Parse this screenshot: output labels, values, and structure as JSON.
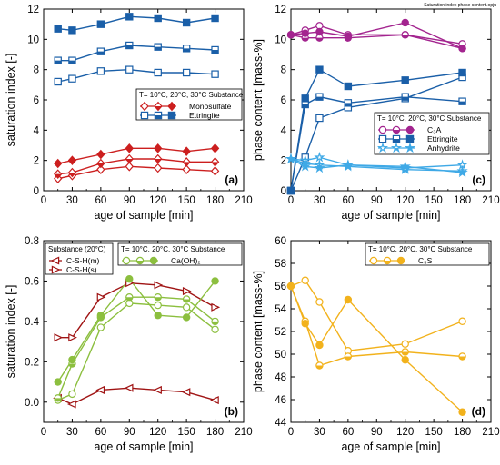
{
  "figure": {
    "header_note": "Saturation index phase content.opju",
    "xlabel": "age of sample [min]",
    "x_ticks": [
      0,
      30,
      60,
      90,
      120,
      150,
      180,
      210
    ]
  },
  "chart_data": [
    {
      "id": "a",
      "panel_label": "(a)",
      "type": "line",
      "ylabel": "saturation index [-]",
      "xlabel": "age of sample [min]",
      "xlim": [
        0,
        210
      ],
      "ylim": [
        0,
        12
      ],
      "y_ticks": [
        0,
        2,
        4,
        6,
        8,
        10,
        12
      ],
      "y_decimals": 0,
      "legend": {
        "position": "center-right",
        "header": "T= 10°C, 20°C, 30°C Substance",
        "entries": [
          {
            "label": "Monosulfate",
            "color": "#cc1f1f",
            "marker": "diamond"
          },
          {
            "label": "Ettringite",
            "color": "#1a5fa8",
            "marker": "square"
          }
        ]
      },
      "series": [
        {
          "name": "Monosulfate",
          "temperature": "10°C",
          "color": "#cc1f1f",
          "marker": "diamond",
          "fill": "none",
          "x": [
            15,
            30,
            60,
            90,
            120,
            150,
            180
          ],
          "y": [
            0.8,
            1.0,
            1.4,
            1.6,
            1.5,
            1.4,
            1.3
          ]
        },
        {
          "name": "Monosulfate",
          "temperature": "20°C",
          "color": "#cc1f1f",
          "marker": "diamond",
          "fill": "half",
          "x": [
            15,
            30,
            60,
            90,
            120,
            150,
            180
          ],
          "y": [
            1.1,
            1.2,
            1.8,
            2.1,
            2.1,
            1.9,
            1.9
          ]
        },
        {
          "name": "Monosulfate",
          "temperature": "30°C",
          "color": "#cc1f1f",
          "marker": "diamond",
          "fill": "full",
          "x": [
            15,
            30,
            60,
            90,
            120,
            150,
            180
          ],
          "y": [
            1.8,
            2.0,
            2.4,
            2.8,
            2.8,
            2.6,
            2.8
          ]
        },
        {
          "name": "Ettringite",
          "temperature": "10°C",
          "color": "#1a5fa8",
          "marker": "square",
          "fill": "none",
          "x": [
            15,
            30,
            60,
            90,
            120,
            150,
            180
          ],
          "y": [
            7.2,
            7.4,
            7.9,
            8.0,
            7.8,
            7.8,
            7.7
          ]
        },
        {
          "name": "Ettringite",
          "temperature": "20°C",
          "color": "#1a5fa8",
          "marker": "square",
          "fill": "half",
          "x": [
            15,
            30,
            60,
            90,
            120,
            150,
            180
          ],
          "y": [
            8.6,
            8.6,
            9.2,
            9.6,
            9.5,
            9.4,
            9.3
          ]
        },
        {
          "name": "Ettringite",
          "temperature": "30°C",
          "color": "#1a5fa8",
          "marker": "square",
          "fill": "full",
          "x": [
            15,
            30,
            60,
            90,
            120,
            150,
            180
          ],
          "y": [
            10.7,
            10.6,
            11.0,
            11.5,
            11.4,
            11.1,
            11.4
          ]
        }
      ]
    },
    {
      "id": "c",
      "panel_label": "(c)",
      "type": "line",
      "ylabel": "phase content [mass-%]",
      "xlabel": "age of sample [min]",
      "xlim": [
        0,
        210
      ],
      "ylim": [
        0,
        12
      ],
      "y_ticks": [
        0,
        2,
        4,
        6,
        8,
        10,
        12
      ],
      "y_decimals": 0,
      "legend": {
        "position": "center-right",
        "header": "T= 10°C, 20°C, 30°C Substance",
        "entries": [
          {
            "label": "C₃A",
            "color": "#a3248f",
            "marker": "circle"
          },
          {
            "label": "Ettringite",
            "color": "#1a5fa8",
            "marker": "square"
          },
          {
            "label": "Anhydrite",
            "color": "#3fa9e6",
            "marker": "star"
          }
        ]
      },
      "series": [
        {
          "name": "C₃A",
          "temperature": "10°C",
          "color": "#a3248f",
          "marker": "circle",
          "fill": "none",
          "x": [
            0,
            15,
            30,
            60,
            120,
            180
          ],
          "y": [
            10.3,
            10.6,
            10.9,
            10.3,
            10.3,
            9.7
          ]
        },
        {
          "name": "C₃A",
          "temperature": "20°C",
          "color": "#a3248f",
          "marker": "circle",
          "fill": "half",
          "x": [
            0,
            15,
            30,
            60,
            120,
            180
          ],
          "y": [
            10.3,
            10.1,
            10.1,
            10.1,
            10.3,
            9.4
          ]
        },
        {
          "name": "C₃A",
          "temperature": "30°C",
          "color": "#a3248f",
          "marker": "circle",
          "fill": "full",
          "x": [
            0,
            15,
            30,
            60,
            120,
            180
          ],
          "y": [
            10.3,
            10.4,
            10.5,
            10.2,
            11.1,
            9.4
          ]
        },
        {
          "name": "Ettringite",
          "temperature": "10°C",
          "color": "#1a5fa8",
          "marker": "square",
          "fill": "none",
          "x": [
            0,
            15,
            30,
            60,
            120,
            180
          ],
          "y": [
            0.0,
            2.2,
            4.8,
            5.5,
            6.1,
            7.5
          ]
        },
        {
          "name": "Ettringite",
          "temperature": "20°C",
          "color": "#1a5fa8",
          "marker": "square",
          "fill": "half",
          "x": [
            0,
            15,
            30,
            60,
            120,
            180
          ],
          "y": [
            0.0,
            5.7,
            6.2,
            5.8,
            6.2,
            5.9
          ]
        },
        {
          "name": "Ettringite",
          "temperature": "30°C",
          "color": "#1a5fa8",
          "marker": "square",
          "fill": "full",
          "x": [
            0,
            15,
            30,
            60,
            120,
            180
          ],
          "y": [
            0.0,
            6.1,
            8.0,
            6.9,
            7.3,
            7.8
          ]
        },
        {
          "name": "Anhydrite",
          "temperature": "10°C",
          "color": "#3fa9e6",
          "marker": "star",
          "fill": "none",
          "x": [
            0,
            15,
            30,
            60,
            120,
            180
          ],
          "y": [
            2.1,
            2.0,
            2.2,
            1.7,
            1.5,
            1.7
          ]
        },
        {
          "name": "Anhydrite",
          "temperature": "20°C",
          "color": "#3fa9e6",
          "marker": "star",
          "fill": "half",
          "x": [
            0,
            15,
            30,
            60,
            120,
            180
          ],
          "y": [
            2.1,
            1.8,
            1.7,
            1.6,
            1.4,
            1.3
          ]
        },
        {
          "name": "Anhydrite",
          "temperature": "30°C",
          "color": "#3fa9e6",
          "marker": "star",
          "fill": "full",
          "x": [
            0,
            15,
            30,
            60,
            120,
            180
          ],
          "y": [
            2.1,
            1.6,
            1.5,
            1.7,
            1.6,
            1.2
          ]
        }
      ]
    },
    {
      "id": "b",
      "panel_label": "(b)",
      "type": "line",
      "ylabel": "saturation index [-]",
      "xlabel": "age of sample [min]",
      "xlim": [
        0,
        210
      ],
      "ylim": [
        -0.1,
        0.8
      ],
      "y_ticks": [
        0.0,
        0.2,
        0.4,
        0.6,
        0.8
      ],
      "y_decimals": 1,
      "legend": {
        "position": "top-left",
        "header": "Substance (20°C)",
        "entries": [
          {
            "label": "C-S-H(m)",
            "color": "#a01414",
            "marker": "tri-left"
          },
          {
            "label": "C-S-H(s)",
            "color": "#a01414",
            "marker": "tri-right"
          }
        ]
      },
      "legend2": {
        "position": "top-right",
        "header": "T= 10°C, 20°C, 30°C Substance",
        "entries": [
          {
            "label": "Ca(OH)₂",
            "color": "#8cbf3f",
            "marker": "circle"
          }
        ]
      },
      "series": [
        {
          "name": "C-S-H(m)",
          "color": "#a01414",
          "marker": "tri-left",
          "fill": "none",
          "x": [
            15,
            30,
            60,
            90,
            120,
            150,
            180
          ],
          "y": [
            0.02,
            -0.01,
            0.06,
            0.07,
            0.06,
            0.05,
            0.01
          ]
        },
        {
          "name": "C-S-H(s)",
          "color": "#a01414",
          "marker": "tri-right",
          "fill": "none",
          "x": [
            15,
            30,
            60,
            90,
            120,
            150,
            180
          ],
          "y": [
            0.32,
            0.32,
            0.52,
            0.59,
            0.58,
            0.55,
            0.47
          ]
        },
        {
          "name": "Ca(OH)₂",
          "temperature": "10°C",
          "color": "#8cbf3f",
          "marker": "circle",
          "fill": "none",
          "x": [
            15,
            30,
            60,
            90,
            120,
            150,
            180
          ],
          "y": [
            0.01,
            0.04,
            0.37,
            0.49,
            0.48,
            0.47,
            0.36
          ]
        },
        {
          "name": "Ca(OH)₂",
          "temperature": "20°C",
          "color": "#8cbf3f",
          "marker": "circle",
          "fill": "half",
          "x": [
            15,
            30,
            60,
            90,
            120,
            150,
            180
          ],
          "y": [
            0.02,
            0.19,
            0.42,
            0.52,
            0.52,
            0.51,
            0.4
          ]
        },
        {
          "name": "Ca(OH)₂",
          "temperature": "30°C",
          "color": "#8cbf3f",
          "marker": "circle",
          "fill": "full",
          "x": [
            15,
            30,
            60,
            90,
            120,
            150,
            180
          ],
          "y": [
            0.1,
            0.21,
            0.43,
            0.61,
            0.43,
            0.42,
            0.6
          ]
        }
      ]
    },
    {
      "id": "d",
      "panel_label": "(d)",
      "type": "line",
      "ylabel": "phase content [mass-%]",
      "xlabel": "age of sample [min]",
      "xlim": [
        0,
        210
      ],
      "ylim": [
        44,
        60
      ],
      "y_ticks": [
        44,
        46,
        48,
        50,
        52,
        54,
        56,
        58,
        60
      ],
      "y_decimals": 0,
      "legend": {
        "position": "top-right",
        "header": "T= 10°C, 20°C, 30°C Substance",
        "entries": [
          {
            "label": "C₃S",
            "color": "#f2b21c",
            "marker": "circle"
          }
        ]
      },
      "series": [
        {
          "name": "C₃S",
          "temperature": "10°C",
          "color": "#f2b21c",
          "marker": "circle",
          "fill": "none",
          "x": [
            0,
            15,
            30,
            60,
            120,
            180
          ],
          "y": [
            56.0,
            56.5,
            54.6,
            50.3,
            50.9,
            52.9
          ]
        },
        {
          "name": "C₃S",
          "temperature": "20°C",
          "color": "#f2b21c",
          "marker": "circle",
          "fill": "half",
          "x": [
            0,
            15,
            30,
            60,
            120,
            180
          ],
          "y": [
            56.0,
            52.9,
            49.0,
            49.8,
            50.2,
            49.8
          ]
        },
        {
          "name": "C₃S",
          "temperature": "30°C",
          "color": "#f2b21c",
          "marker": "circle",
          "fill": "full",
          "x": [
            0,
            15,
            30,
            60,
            120,
            180
          ],
          "y": [
            56.0,
            52.7,
            50.8,
            54.8,
            49.5,
            44.9
          ]
        }
      ]
    }
  ]
}
